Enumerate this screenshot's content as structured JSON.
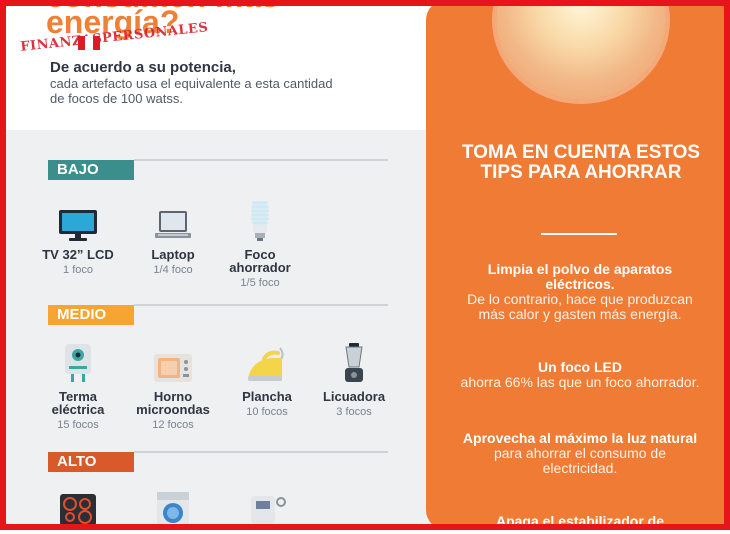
{
  "header": {
    "headline_cut": "consumen más",
    "headline": "energía?",
    "watermark": "FINANZASPERSONALES",
    "subtitle_bold": "De acuerdo a su potencia,",
    "subtitle_text": "cada artefacto usa el equivalente a esta cantidad de focos de 100 watss."
  },
  "sections": {
    "bajo": {
      "label": "BAJO",
      "color": "#3a8e8c",
      "items": [
        {
          "name": "TV 32” LCD",
          "qty": "1 foco",
          "icon": "tv-icon"
        },
        {
          "name": "Laptop",
          "qty": "1/4 foco",
          "icon": "laptop-icon"
        },
        {
          "name": "Foco ahorrador",
          "qty": "1/5 foco",
          "icon": "cfl-bulb-icon"
        }
      ]
    },
    "medio": {
      "label": "MEDIO",
      "color": "#f5a530",
      "items": [
        {
          "name": "Terma eléctrica",
          "qty": "15 focos",
          "icon": "water-heater-icon"
        },
        {
          "name": "Horno microondas",
          "qty": "12 focos",
          "icon": "microwave-icon"
        },
        {
          "name": "Plancha",
          "qty": "10 focos",
          "icon": "iron-icon"
        },
        {
          "name": "Licuadora",
          "qty": "3 focos",
          "icon": "blender-icon"
        }
      ]
    },
    "alto": {
      "label": "ALTO",
      "color": "#d85a2b",
      "items": [
        {
          "icon": "stove-icon"
        },
        {
          "icon": "washing-machine-icon"
        },
        {
          "icon": "electric-shower-icon"
        }
      ]
    }
  },
  "tips": {
    "title": "TOMA EN CUENTA ESTOS TIPS PARA AHORRAR",
    "items": [
      {
        "bold": "Limpia el polvo de aparatos eléctricos.",
        "normal": "De lo contrario, hace que produzcan más calor y gasten más energía."
      },
      {
        "bold": "Un foco LED",
        "normal": "ahorra 66% las que un foco ahorrador."
      },
      {
        "bold": "Aprovecha al máximo la luz natural",
        "normal": "para ahorrar el consumo de electricidad."
      },
      {
        "bold": "Apaga el estabilizador de",
        "normal": ""
      }
    ]
  },
  "colors": {
    "orange_panel": "#f07b34",
    "headline_orange": "#f08036",
    "frame_red": "#e8141b"
  }
}
